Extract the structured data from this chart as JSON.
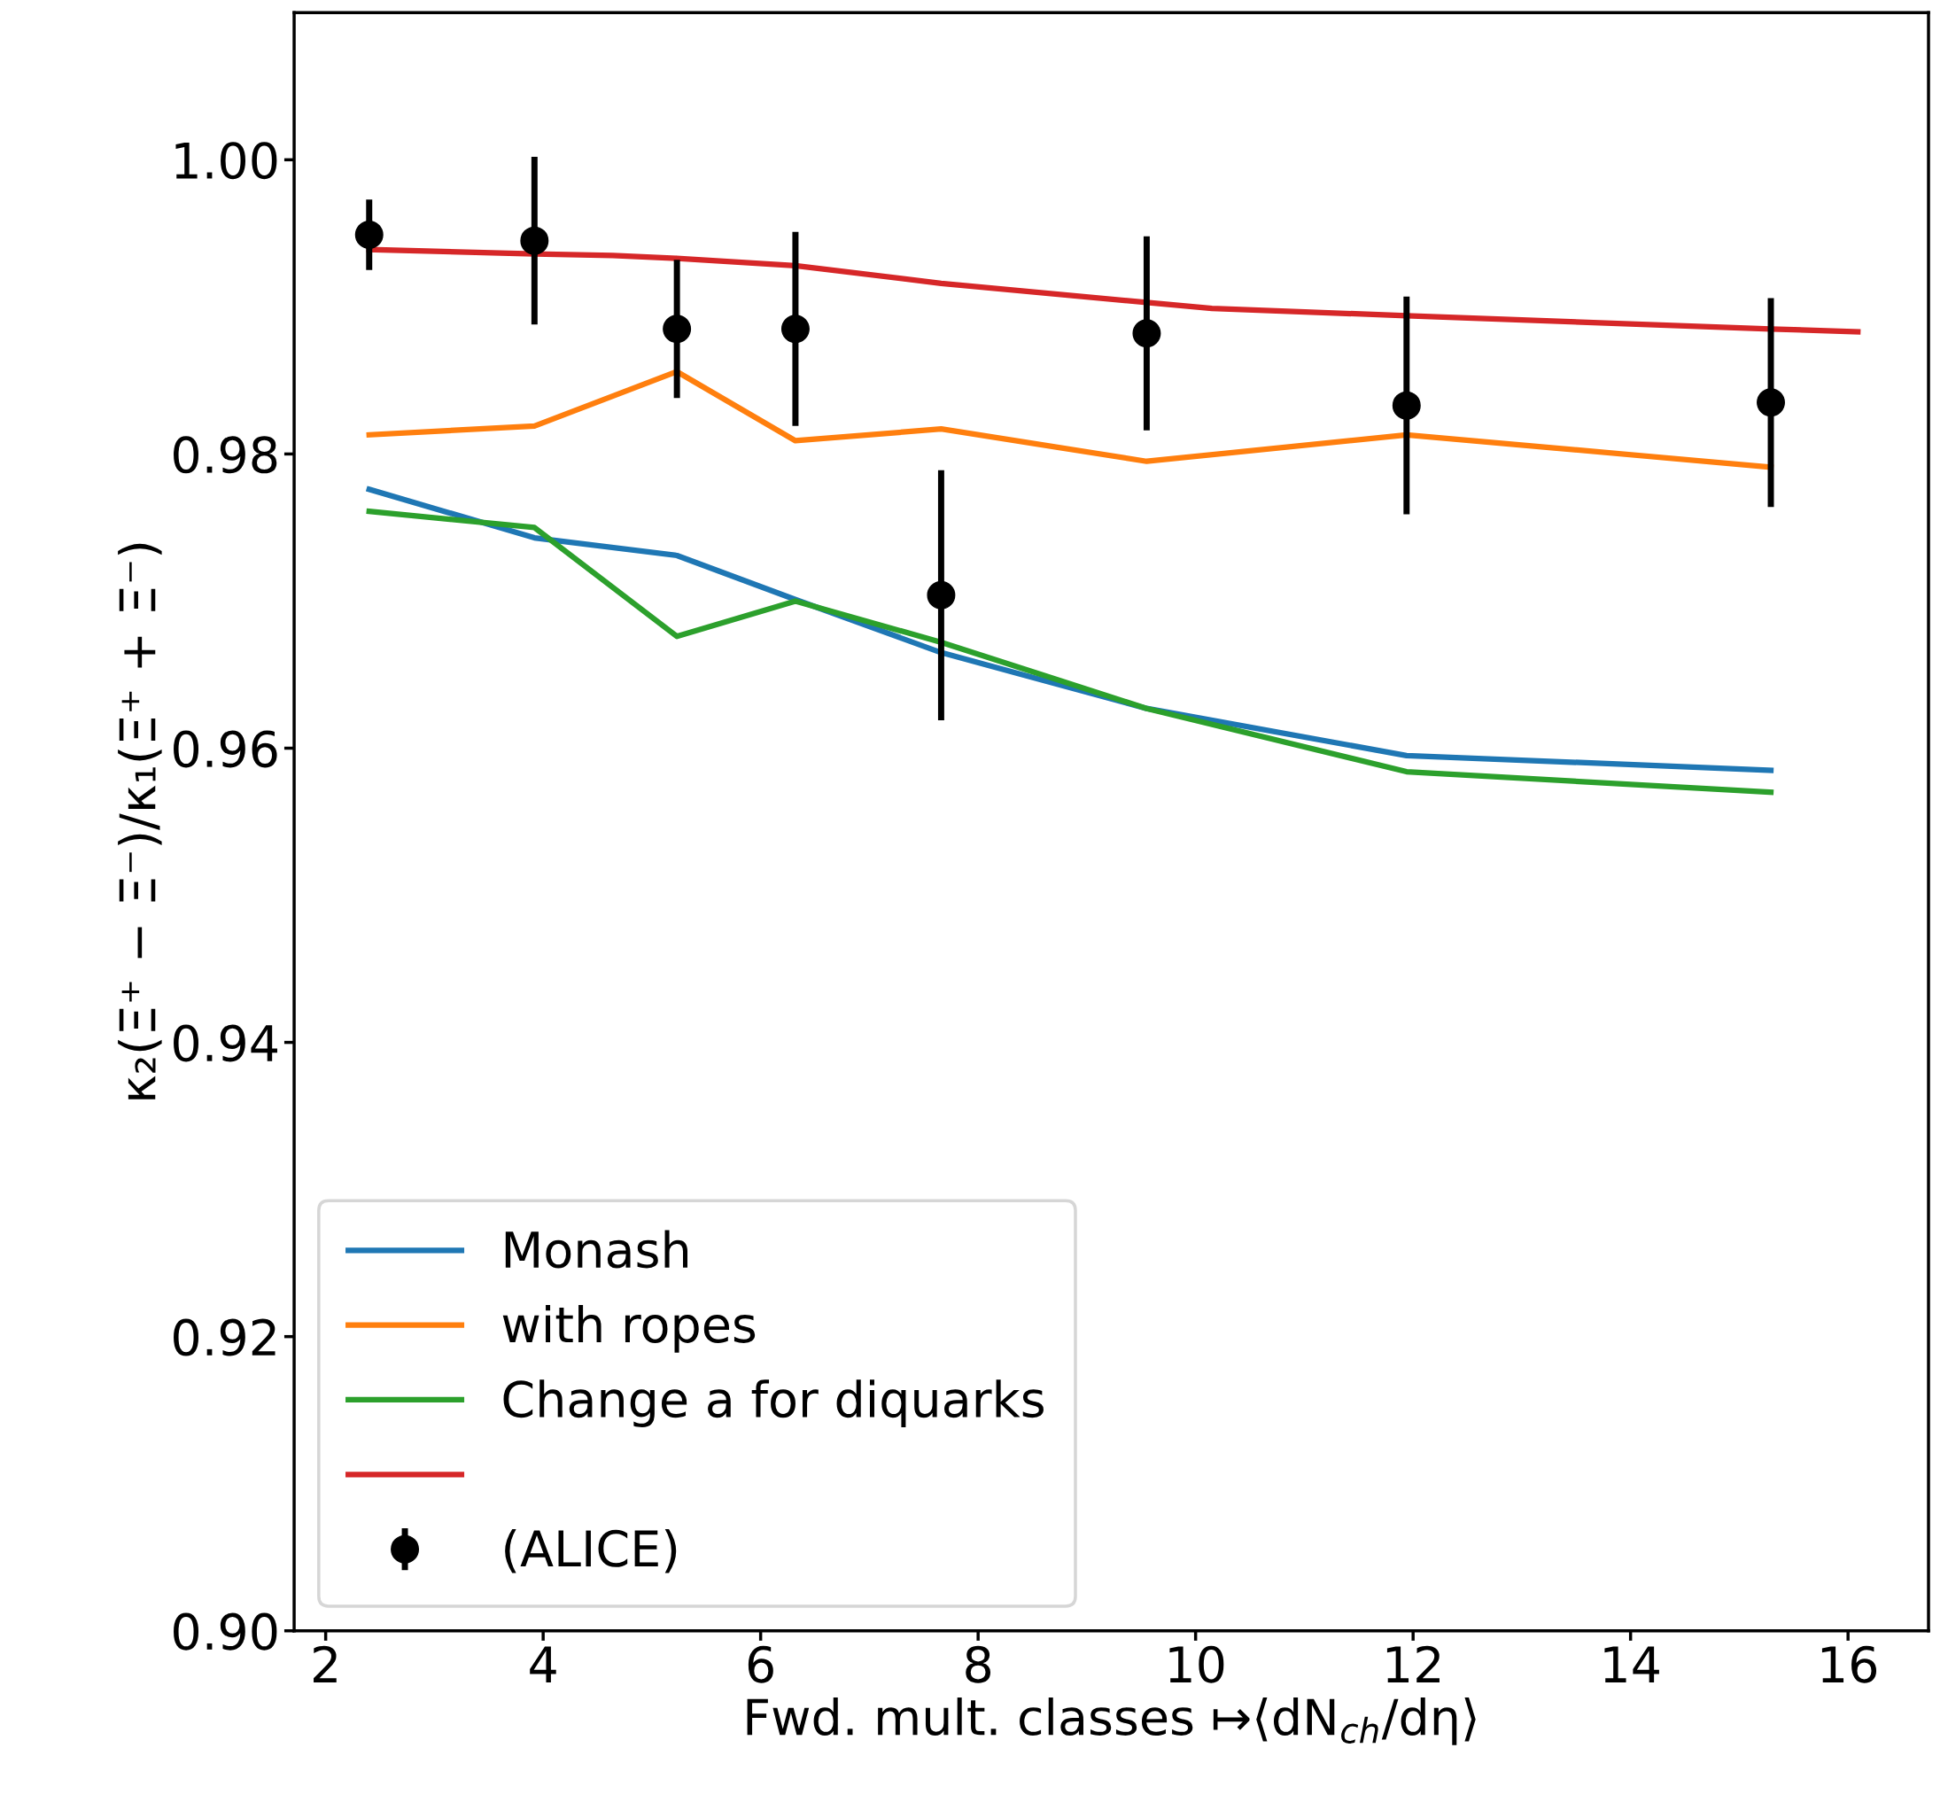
{
  "chart_data": {
    "type": "line",
    "xlabel": "Fwd. mult. classes ↦⟨dN$_{ch}$/dη⟩",
    "ylabel": "κ₂(Ξ⁺ − Ξ⁻)/κ₁(Ξ⁺ + Ξ⁻)",
    "xlim": [
      1.71,
      16.74
    ],
    "xticks": [
      2,
      4,
      6,
      8,
      10,
      12,
      14,
      16
    ],
    "ylim": [
      0.9,
      1.01
    ],
    "yticks": [
      {
        "value": 0.9,
        "label": "0.90"
      },
      {
        "value": 0.92,
        "label": "0.92"
      },
      {
        "value": 0.94,
        "label": "0.94"
      },
      {
        "value": 0.96,
        "label": "0.96"
      },
      {
        "value": 0.98,
        "label": "0.98"
      },
      {
        "value": 1.0,
        "label": "1.00"
      }
    ],
    "grid": false,
    "legend": "bottom left",
    "marker": "none",
    "line_style": "solid",
    "series": [
      {
        "name": "Monash",
        "color": "#1f77b4",
        "x": [
          2.4,
          3.92,
          5.23,
          6.32,
          7.66,
          9.55,
          11.94,
          15.29
        ],
        "values": [
          0.9776,
          0.9743,
          0.9731,
          0.9701,
          0.9665,
          0.9627,
          0.9595,
          0.9585
        ]
      },
      {
        "name": "with ropes",
        "color": "#ff7f0e",
        "x": [
          2.4,
          3.92,
          5.23,
          6.32,
          7.66,
          9.55,
          11.94,
          15.29
        ],
        "values": [
          0.9813,
          0.9819,
          0.9856,
          0.9809,
          0.9817,
          0.9795,
          0.9813,
          0.9791
        ]
      },
      {
        "name": "Change a for diquarks",
        "color": "#2ca02c",
        "x": [
          2.4,
          3.92,
          5.23,
          6.32,
          7.66,
          9.55,
          11.94,
          15.29
        ],
        "values": [
          0.9761,
          0.975,
          0.9676,
          0.97,
          0.9672,
          0.9627,
          0.9584,
          0.957
        ]
      },
      {
        "color": "#d62728",
        "x": [
          2.4,
          3.92,
          4.64,
          5.23,
          6.32,
          7.66,
          9.55,
          10.15,
          11.94,
          15.29,
          16.09
        ],
        "values": [
          0.9939,
          0.9936,
          0.9935,
          0.9933,
          0.9928,
          0.9916,
          0.9903,
          0.9899,
          0.9894,
          0.9885,
          0.9883
        ]
      },
      {
        "name": "(ALICE)",
        "type": "scatter",
        "marker": "circle",
        "color": "#000000",
        "x": [
          2.4,
          3.92,
          5.23,
          6.32,
          7.66,
          9.55,
          11.94,
          15.29
        ],
        "values": [
          0.9949,
          0.9945,
          0.9885,
          0.9885,
          0.9704,
          0.9882,
          0.9833,
          0.9835
        ],
        "errors": [
          0.0024,
          0.0057,
          0.0047,
          0.0066,
          0.0085,
          0.0066,
          0.0074,
          0.0071
        ]
      }
    ]
  }
}
